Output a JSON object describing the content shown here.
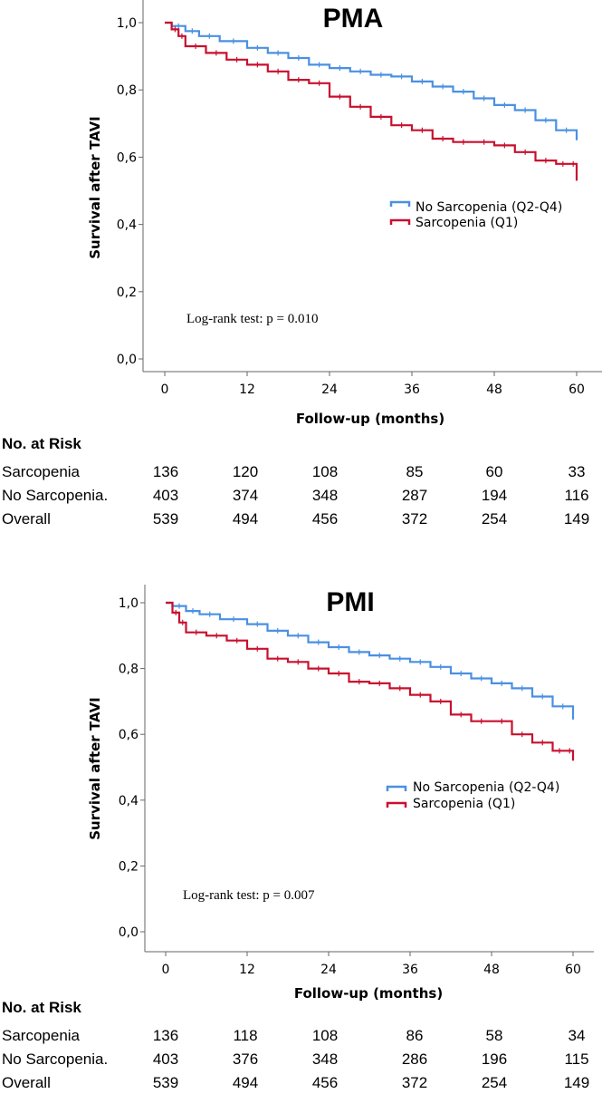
{
  "chart_data": [
    {
      "type": "line",
      "subtype": "kaplan-meier",
      "title": "PMA",
      "xlabel": "Follow-up (months)",
      "ylabel": "Survival after TAVI",
      "xlim": [
        0,
        60
      ],
      "ylim": [
        0,
        1
      ],
      "xticks": [
        0,
        12,
        24,
        36,
        48,
        60
      ],
      "yticks": [
        0,
        0.2,
        0.4,
        0.6,
        0.8,
        1.0
      ],
      "ytick_labels": [
        "0,0",
        "0,2",
        "0,4",
        "0,6",
        "0,8",
        "1,0"
      ],
      "grid": false,
      "legend_position": "right-middle",
      "annotation": "Log-rank test: p = 0.010",
      "series": [
        {
          "name": "No Sarcopenia (Q2-Q4)",
          "color": "#4a90e2",
          "x": [
            0,
            1,
            3,
            5,
            8,
            12,
            15,
            18,
            21,
            24,
            27,
            30,
            33,
            36,
            39,
            42,
            45,
            48,
            51,
            54,
            57,
            60
          ],
          "y": [
            1.0,
            0.99,
            0.975,
            0.96,
            0.945,
            0.925,
            0.91,
            0.895,
            0.875,
            0.865,
            0.855,
            0.845,
            0.84,
            0.825,
            0.81,
            0.795,
            0.775,
            0.755,
            0.74,
            0.71,
            0.68,
            0.65
          ]
        },
        {
          "name": "Sarcopenia (Q1)",
          "color": "#c8102e",
          "x": [
            0,
            1,
            2,
            3,
            6,
            9,
            12,
            15,
            18,
            21,
            24,
            27,
            30,
            33,
            36,
            39,
            42,
            45,
            48,
            51,
            54,
            57,
            59,
            60
          ],
          "y": [
            1.0,
            0.98,
            0.96,
            0.93,
            0.91,
            0.89,
            0.875,
            0.855,
            0.83,
            0.82,
            0.78,
            0.75,
            0.72,
            0.695,
            0.68,
            0.655,
            0.645,
            0.645,
            0.635,
            0.615,
            0.59,
            0.58,
            0.58,
            0.53
          ]
        }
      ],
      "risk_table": {
        "header": "No. at Risk",
        "timepoints": [
          0,
          12,
          24,
          36,
          48,
          60
        ],
        "rows": [
          {
            "label": "Sarcopenia",
            "values": [
              "136",
              "120",
              "108",
              "85",
              "60",
              "33"
            ]
          },
          {
            "label": "No Sarcopenia.",
            "values": [
              "403",
              "374",
              "348",
              "287",
              "194",
              "116"
            ]
          },
          {
            "label": "Overall",
            "values": [
              "539",
              "494",
              "456",
              "372",
              "254",
              "149"
            ]
          }
        ]
      }
    },
    {
      "type": "line",
      "subtype": "kaplan-meier",
      "title": "PMI",
      "xlabel": "Follow-up (months)",
      "ylabel": "Survival after TAVI",
      "xlim": [
        0,
        60
      ],
      "ylim": [
        0,
        1
      ],
      "xticks": [
        0,
        12,
        24,
        36,
        48,
        60
      ],
      "yticks": [
        0,
        0.2,
        0.4,
        0.6,
        0.8,
        1.0
      ],
      "ytick_labels": [
        "0,0",
        "0,2",
        "0,4",
        "0,6",
        "0,8",
        "1,0"
      ],
      "grid": false,
      "legend_position": "right-middle",
      "annotation": "Log-rank test: p = 0.007",
      "series": [
        {
          "name": "No Sarcopenia (Q2-Q4)",
          "color": "#4a90e2",
          "x": [
            0,
            1,
            3,
            5,
            8,
            12,
            15,
            18,
            21,
            24,
            27,
            30,
            33,
            36,
            39,
            42,
            45,
            48,
            51,
            54,
            57,
            60
          ],
          "y": [
            1.0,
            0.99,
            0.975,
            0.965,
            0.95,
            0.935,
            0.915,
            0.9,
            0.88,
            0.865,
            0.85,
            0.84,
            0.83,
            0.82,
            0.805,
            0.785,
            0.77,
            0.755,
            0.74,
            0.715,
            0.685,
            0.645
          ]
        },
        {
          "name": "Sarcopenia (Q1)",
          "color": "#c8102e",
          "x": [
            0,
            1,
            2,
            3,
            6,
            9,
            12,
            15,
            18,
            21,
            24,
            27,
            30,
            33,
            36,
            39,
            42,
            45,
            48,
            51,
            54,
            57,
            59,
            60
          ],
          "y": [
            1.0,
            0.97,
            0.94,
            0.91,
            0.9,
            0.885,
            0.86,
            0.83,
            0.82,
            0.8,
            0.785,
            0.76,
            0.755,
            0.74,
            0.72,
            0.7,
            0.66,
            0.64,
            0.64,
            0.6,
            0.575,
            0.55,
            0.55,
            0.52
          ]
        }
      ],
      "risk_table": {
        "header": "No. at Risk",
        "timepoints": [
          0,
          12,
          24,
          36,
          48,
          60
        ],
        "rows": [
          {
            "label": "Sarcopenia",
            "values": [
              "136",
              "118",
              "108",
              "86",
              "58",
              "34"
            ]
          },
          {
            "label": "No Sarcopenia.",
            "values": [
              "403",
              "376",
              "348",
              "286",
              "196",
              "115"
            ]
          },
          {
            "label": "Overall",
            "values": [
              "539",
              "494",
              "456",
              "372",
              "254",
              "149"
            ]
          }
        ]
      }
    }
  ]
}
